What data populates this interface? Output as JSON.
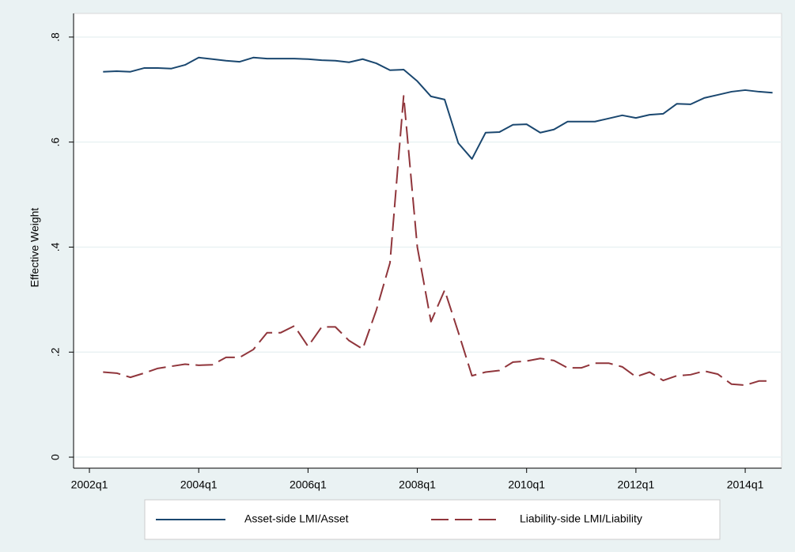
{
  "chart_data": {
    "type": "line",
    "ylabel": "Effective Weight",
    "x": [
      169,
      170,
      171,
      172,
      173,
      174,
      175,
      176,
      177,
      178,
      179,
      180,
      181,
      182,
      183,
      184,
      185,
      186,
      187,
      188,
      189,
      190,
      191,
      192,
      193,
      194,
      195,
      196,
      197,
      198,
      199,
      200,
      201,
      202,
      203,
      204,
      205,
      206,
      207,
      208,
      209,
      210,
      211,
      212,
      213,
      214,
      215,
      216,
      217,
      218
    ],
    "series": [
      {
        "name": "Asset-side LMI/Asset",
        "color": "#1a476f",
        "dash": false,
        "values": [
          0.734,
          0.735,
          0.734,
          0.741,
          0.741,
          0.74,
          0.747,
          0.761,
          0.758,
          0.755,
          0.753,
          0.761,
          0.759,
          0.759,
          0.759,
          0.758,
          0.756,
          0.755,
          0.752,
          0.758,
          0.75,
          0.737,
          0.738,
          0.716,
          0.687,
          0.681,
          0.598,
          0.568,
          0.618,
          0.619,
          0.633,
          0.634,
          0.618,
          0.624,
          0.639,
          0.639,
          0.639,
          0.645,
          0.651,
          0.646,
          0.652,
          0.654,
          0.673,
          0.672,
          0.684,
          0.69,
          0.696,
          0.699,
          0.696,
          0.694
        ]
      },
      {
        "name": "Liability-side LMI/Liability",
        "color": "#90353b",
        "dash": true,
        "values": [
          0.162,
          0.16,
          0.152,
          0.16,
          0.169,
          0.173,
          0.177,
          0.175,
          0.176,
          0.19,
          0.19,
          0.205,
          0.237,
          0.237,
          0.25,
          0.211,
          0.248,
          0.248,
          0.222,
          0.206,
          0.28,
          0.37,
          0.688,
          0.4,
          0.258,
          0.318,
          0.238,
          0.155,
          0.162,
          0.165,
          0.181,
          0.183,
          0.188,
          0.184,
          0.17,
          0.17,
          0.179,
          0.179,
          0.172,
          0.153,
          0.162,
          0.146,
          0.155,
          0.157,
          0.164,
          0.158,
          0.139,
          0.137,
          0.145,
          0.145
        ]
      }
    ],
    "xlim": [
      166.84,
      218.66
    ],
    "xticks": [
      {
        "value": 168,
        "label": "2002q1"
      },
      {
        "value": 176,
        "label": "2004q1"
      },
      {
        "value": 184,
        "label": "2006q1"
      },
      {
        "value": 192,
        "label": "2008q1"
      },
      {
        "value": 200,
        "label": "2010q1"
      },
      {
        "value": 208,
        "label": "2012q1"
      },
      {
        "value": 216,
        "label": "2014q1"
      }
    ],
    "ylim": [
      -0.021,
      0.845
    ],
    "yticks": [
      0,
      {
        "value": 0.2,
        "label": ".2"
      },
      {
        "value": 0.4,
        "label": ".4"
      },
      {
        "value": 0.6,
        "label": ".6"
      },
      {
        "value": 0.8,
        "label": ".8"
      }
    ],
    "grid": true,
    "legend": "bottom"
  }
}
